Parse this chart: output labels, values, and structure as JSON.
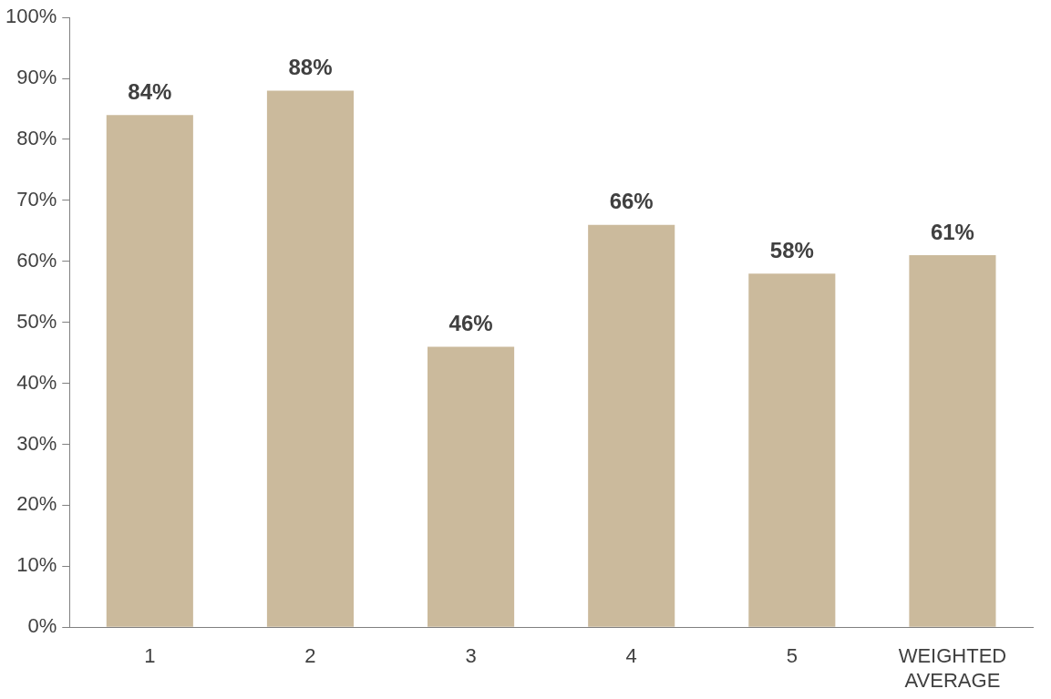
{
  "chart_data": {
    "type": "bar",
    "categories": [
      "1",
      "2",
      "3",
      "4",
      "5",
      "WEIGHTED AVERAGE"
    ],
    "values": [
      84,
      88,
      46,
      66,
      58,
      61
    ],
    "value_labels": [
      "84%",
      "88%",
      "46%",
      "66%",
      "58%",
      "61%"
    ],
    "color": "#cbba9c",
    "ylim": [
      0,
      100
    ],
    "yticks": [
      {
        "value": 0,
        "label": "0%"
      },
      {
        "value": 10,
        "label": "10%"
      },
      {
        "value": 20,
        "label": "20%"
      },
      {
        "value": 30,
        "label": "30%"
      },
      {
        "value": 40,
        "label": "40%"
      },
      {
        "value": 50,
        "label": "50%"
      },
      {
        "value": 60,
        "label": "60%"
      },
      {
        "value": 70,
        "label": "70%"
      },
      {
        "value": 80,
        "label": "80%"
      },
      {
        "value": 90,
        "label": "90%"
      },
      {
        "value": 100,
        "label": "100%"
      }
    ],
    "grid": false,
    "legend": false
  }
}
